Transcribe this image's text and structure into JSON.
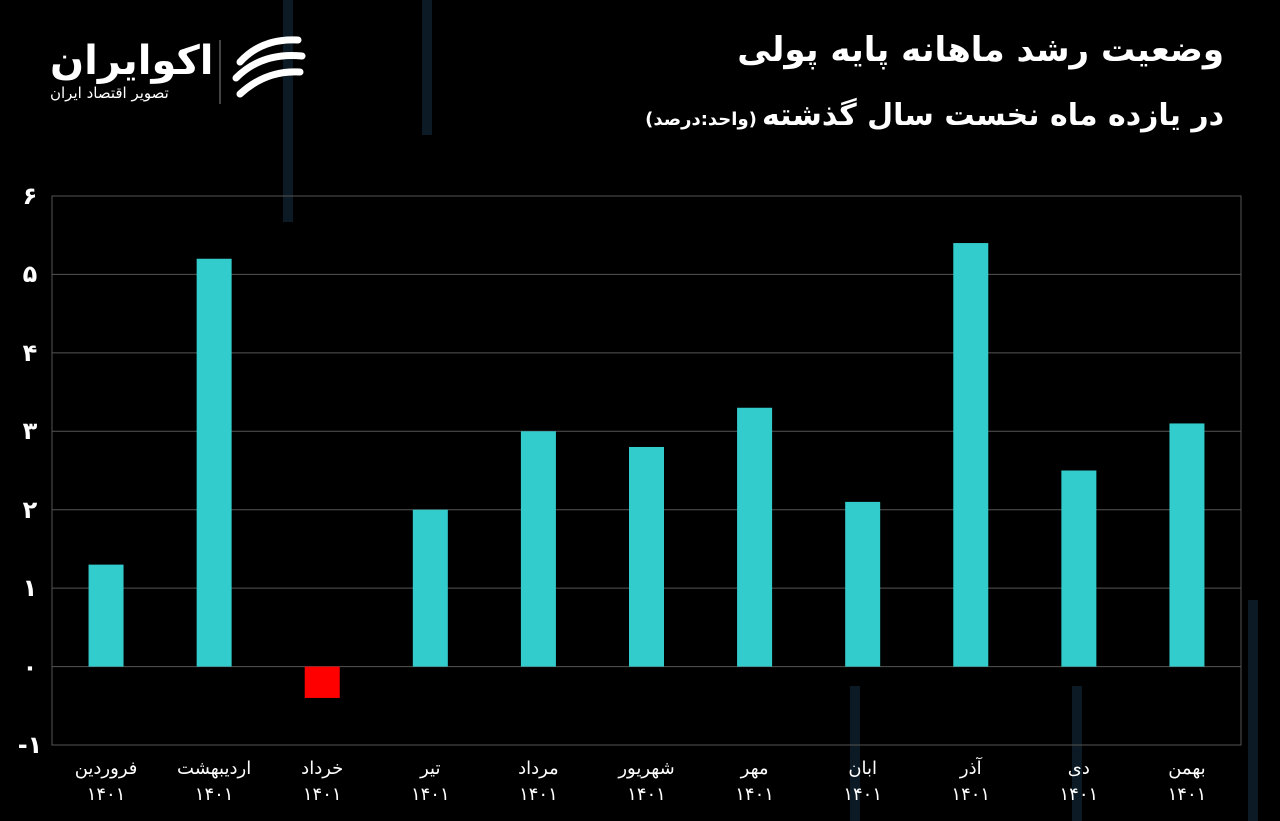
{
  "chart_data": {
    "type": "bar",
    "title": "وضعیت رشد ماهانه پایه پولی",
    "subtitle": "در یازده ماه نخست سال گذشته",
    "unit": "(واحد:درصد)",
    "brand": "اکوایران",
    "brand_tagline": "تصویر اقتصاد ایران",
    "categories": [
      "فروردین\n۱۴۰۱",
      "اردیبهشت\n۱۴۰۱",
      "خرداد\n۱۴۰۱",
      "تیر\n۱۴۰۱",
      "مرداد\n۱۴۰۱",
      "شهریور\n۱۴۰۱",
      "مهر\n۱۴۰۱",
      "ابان\n۱۴۰۱",
      "آذر\n۱۴۰۱",
      "دی\n۱۴۰۱",
      "بهمن\n۱۴۰۱"
    ],
    "values": [
      1.3,
      5.2,
      -0.4,
      2.0,
      3.0,
      2.8,
      3.3,
      2.1,
      5.4,
      2.5,
      3.1
    ],
    "color": "#33cccc",
    "negative_color": "#ff0000",
    "ylim": [
      -1,
      6
    ],
    "yticks": [
      {
        "value": -1,
        "label": "-۱"
      },
      {
        "value": 0,
        "label": "۰"
      },
      {
        "value": 1,
        "label": "۱"
      },
      {
        "value": 2,
        "label": "۲"
      },
      {
        "value": 3,
        "label": "۳"
      },
      {
        "value": 4,
        "label": "۴"
      },
      {
        "value": 5,
        "label": "۵"
      },
      {
        "value": 6,
        "label": "۶"
      }
    ],
    "grid": true
  }
}
